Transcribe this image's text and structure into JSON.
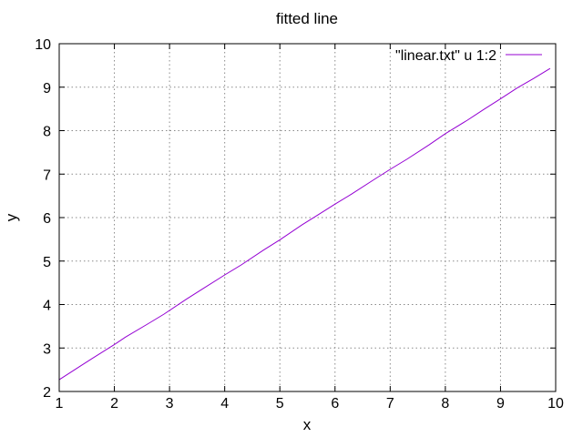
{
  "chart_data": {
    "type": "line",
    "title": "fitted line",
    "xlabel": "x",
    "ylabel": "y",
    "xlim": [
      1,
      10
    ],
    "ylim": [
      2,
      10
    ],
    "xticks": [
      "1",
      "2",
      "3",
      "4",
      "5",
      "6",
      "7",
      "8",
      "9",
      "10"
    ],
    "yticks": [
      "2",
      "3",
      "4",
      "5",
      "6",
      "7",
      "8",
      "9",
      "10"
    ],
    "grid": true,
    "legend_position": "top-right",
    "series": [
      {
        "name": "\"linear.txt\" u 1:2",
        "color": "#9400d3",
        "x": [
          1.0,
          1.4,
          1.6,
          2.0,
          2.2,
          2.6,
          2.9,
          3.3,
          3.6,
          4.0,
          4.3,
          4.7,
          5.0,
          5.4,
          5.7,
          6.0,
          6.3,
          6.7,
          7.0,
          7.3,
          7.7,
          8.0,
          8.4,
          8.7,
          9.0,
          9.3,
          9.6,
          9.9
        ],
        "y": [
          2.27,
          2.6,
          2.76,
          3.08,
          3.25,
          3.55,
          3.78,
          4.12,
          4.36,
          4.68,
          4.91,
          5.25,
          5.49,
          5.83,
          6.07,
          6.31,
          6.54,
          6.87,
          7.11,
          7.34,
          7.67,
          7.93,
          8.24,
          8.49,
          8.73,
          8.98,
          9.2,
          9.43
        ]
      }
    ]
  }
}
